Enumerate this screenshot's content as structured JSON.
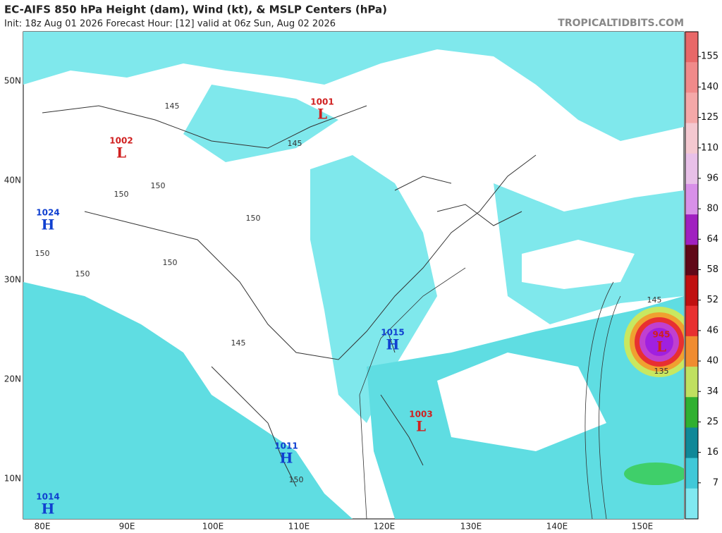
{
  "header": {
    "title": "EC-AIFS 850 hPa Height (dam), Wind (kt), & MSLP Centers (hPa)",
    "subtitle": "Init: 18z Aug 01 2026   Forecast Hour: [12]   valid at 06z Sun, Aug 02 2026",
    "site": "TROPICALTIDBITS.COM"
  },
  "map": {
    "lat_labels": [
      "50N",
      "40N",
      "30N",
      "20N",
      "10N"
    ],
    "lon_labels": [
      "80E",
      "90E",
      "100E",
      "110E",
      "120E",
      "130E",
      "140E",
      "150E"
    ],
    "pressure_centers": [
      {
        "value": "1001",
        "letter": "L"
      },
      {
        "value": "1002",
        "letter": "L"
      },
      {
        "value": "1024",
        "letter": "H"
      },
      {
        "value": "1015",
        "letter": "H"
      },
      {
        "value": "1003",
        "letter": "L"
      },
      {
        "value": "1011",
        "letter": "H"
      },
      {
        "value": "1014",
        "letter": "H"
      },
      {
        "value": "945",
        "letter": "L"
      }
    ],
    "contour_labels": [
      "145",
      "145",
      "145",
      "145",
      "150",
      "150",
      "150",
      "150",
      "150",
      "150",
      "150",
      "135"
    ]
  },
  "colorbar": {
    "ticks": [
      155,
      140,
      125,
      110,
      96,
      80,
      64,
      58,
      52,
      46,
      40,
      34,
      25,
      16,
      7
    ]
  }
}
